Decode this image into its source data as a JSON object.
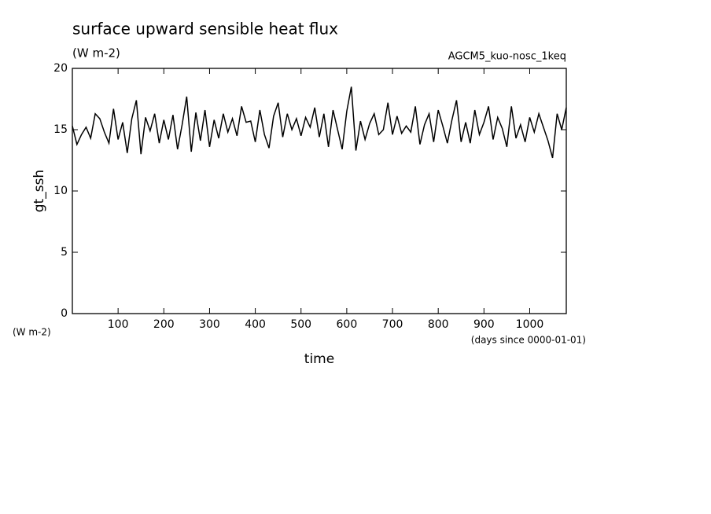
{
  "chart_data": {
    "type": "line",
    "title": "surface upward sensible heat flux",
    "subtitle": "(W m-2)",
    "annotation": "AGCM5_kuo-nosc_1keq",
    "y_label": "gt_ssh",
    "y_unit": "(W m-2)",
    "x_label": "time",
    "x_unit": "(days since 0000-01-01)",
    "xlim": [
      0,
      1080
    ],
    "ylim": [
      0,
      20
    ],
    "xticks": [
      100,
      200,
      300,
      400,
      500,
      600,
      700,
      800,
      900,
      1000
    ],
    "yticks": [
      0,
      5,
      10,
      15,
      20
    ],
    "x": [
      0,
      10,
      20,
      30,
      40,
      50,
      60,
      70,
      80,
      90,
      100,
      110,
      120,
      130,
      140,
      150,
      160,
      170,
      180,
      190,
      200,
      210,
      220,
      230,
      240,
      250,
      260,
      270,
      280,
      290,
      300,
      310,
      320,
      330,
      340,
      350,
      360,
      370,
      380,
      390,
      400,
      410,
      420,
      430,
      440,
      450,
      460,
      470,
      480,
      490,
      500,
      510,
      520,
      530,
      540,
      550,
      560,
      570,
      580,
      590,
      600,
      610,
      620,
      630,
      640,
      650,
      660,
      670,
      680,
      690,
      700,
      710,
      720,
      730,
      740,
      750,
      760,
      770,
      780,
      790,
      800,
      810,
      820,
      830,
      840,
      850,
      860,
      870,
      880,
      890,
      900,
      910,
      920,
      930,
      940,
      950,
      960,
      970,
      980,
      990,
      1000,
      1010,
      1020,
      1030,
      1040,
      1050,
      1060,
      1070,
      1080
    ],
    "series": [
      {
        "color": "#000000",
        "values": [
          15.3,
          13.8,
          14.6,
          15.2,
          14.3,
          16.3,
          15.9,
          14.8,
          13.9,
          16.7,
          14.2,
          15.6,
          13.1,
          15.9,
          17.4,
          13.0,
          16.0,
          14.9,
          16.3,
          13.9,
          15.8,
          14.2,
          16.2,
          13.4,
          15.4,
          17.7,
          13.2,
          16.4,
          14.1,
          16.6,
          13.6,
          15.8,
          14.3,
          16.3,
          14.8,
          15.9,
          14.5,
          16.9,
          15.6,
          15.7,
          14.0,
          16.6,
          14.6,
          13.5,
          16.1,
          17.2,
          14.4,
          16.3,
          15.0,
          15.9,
          14.5,
          16.0,
          15.2,
          16.8,
          14.4,
          16.3,
          13.6,
          16.6,
          15.0,
          13.4,
          16.5,
          18.5,
          13.3,
          15.7,
          14.2,
          15.5,
          16.3,
          14.6,
          15.0,
          17.2,
          14.6,
          16.1,
          14.7,
          15.3,
          14.8,
          16.9,
          13.8,
          15.4,
          16.3,
          14.0,
          16.6,
          15.3,
          13.9,
          15.8,
          17.4,
          14.0,
          15.6,
          13.9,
          16.6,
          14.6,
          15.6,
          16.9,
          14.2,
          16.0,
          15.1,
          13.6,
          16.9,
          14.3,
          15.4,
          14.0,
          16.0,
          14.8,
          16.3,
          15.2,
          14.1,
          12.7,
          16.3,
          15.0,
          16.8
        ]
      }
    ]
  }
}
